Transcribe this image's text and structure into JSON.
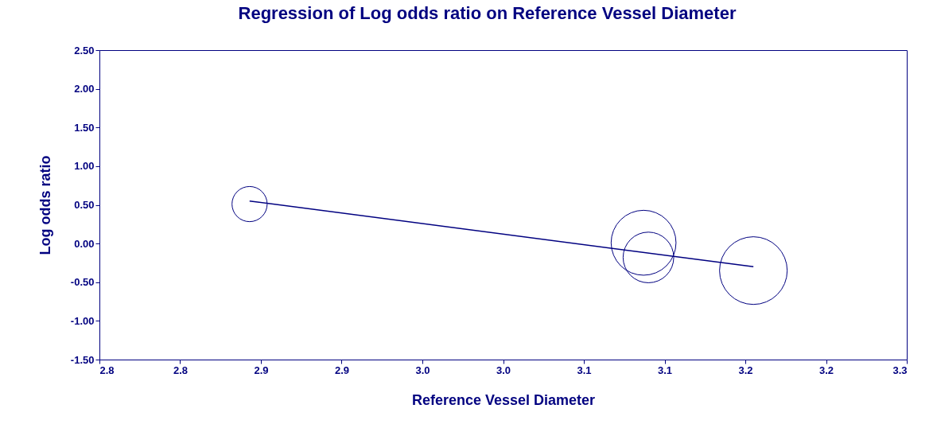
{
  "chart_data": {
    "type": "bubble",
    "title": "Regression of Log odds ratio on Reference Vessel Diameter",
    "xlabel": "Reference Vessel Diameter",
    "ylabel": "Log odds ratio",
    "xlim": [
      2.75,
      3.25
    ],
    "xticks": [
      {
        "value": 2.75,
        "label": "2.8"
      },
      {
        "value": 2.8,
        "label": "2.8"
      },
      {
        "value": 2.85,
        "label": "2.9"
      },
      {
        "value": 2.9,
        "label": "2.9"
      },
      {
        "value": 2.95,
        "label": "3.0"
      },
      {
        "value": 3.0,
        "label": "3.0"
      },
      {
        "value": 3.05,
        "label": "3.1"
      },
      {
        "value": 3.1,
        "label": "3.1"
      },
      {
        "value": 3.15,
        "label": "3.2"
      },
      {
        "value": 3.2,
        "label": "3.2"
      },
      {
        "value": 3.25,
        "label": "3.3"
      }
    ],
    "ylim": [
      -1.5,
      2.5
    ],
    "yticks": [
      {
        "value": -1.5,
        "label": "-1.50"
      },
      {
        "value": -1,
        "label": "-1.00"
      },
      {
        "value": -0.5,
        "label": "-0.50"
      },
      {
        "value": 0,
        "label": "0.00"
      },
      {
        "value": 0.5,
        "label": "0.50"
      },
      {
        "value": 1,
        "label": "1.00"
      },
      {
        "value": 1.5,
        "label": "1.50"
      },
      {
        "value": 2,
        "label": "2.00"
      },
      {
        "value": 2.5,
        "label": "2.50"
      }
    ],
    "grid": false,
    "series": [
      {
        "color": "#000080",
        "x": [
          2.843,
          3.087,
          3.09,
          3.155
        ],
        "values": [
          0.51,
          0.01,
          -0.18,
          -0.35
        ],
        "sizes": [
          0.27,
          0.92,
          0.56,
          1
        ]
      },
      {
        "type": "line",
        "color": "#000080",
        "x": [
          2.843,
          3.155
        ],
        "values": [
          0.55,
          -0.3
        ]
      }
    ]
  }
}
